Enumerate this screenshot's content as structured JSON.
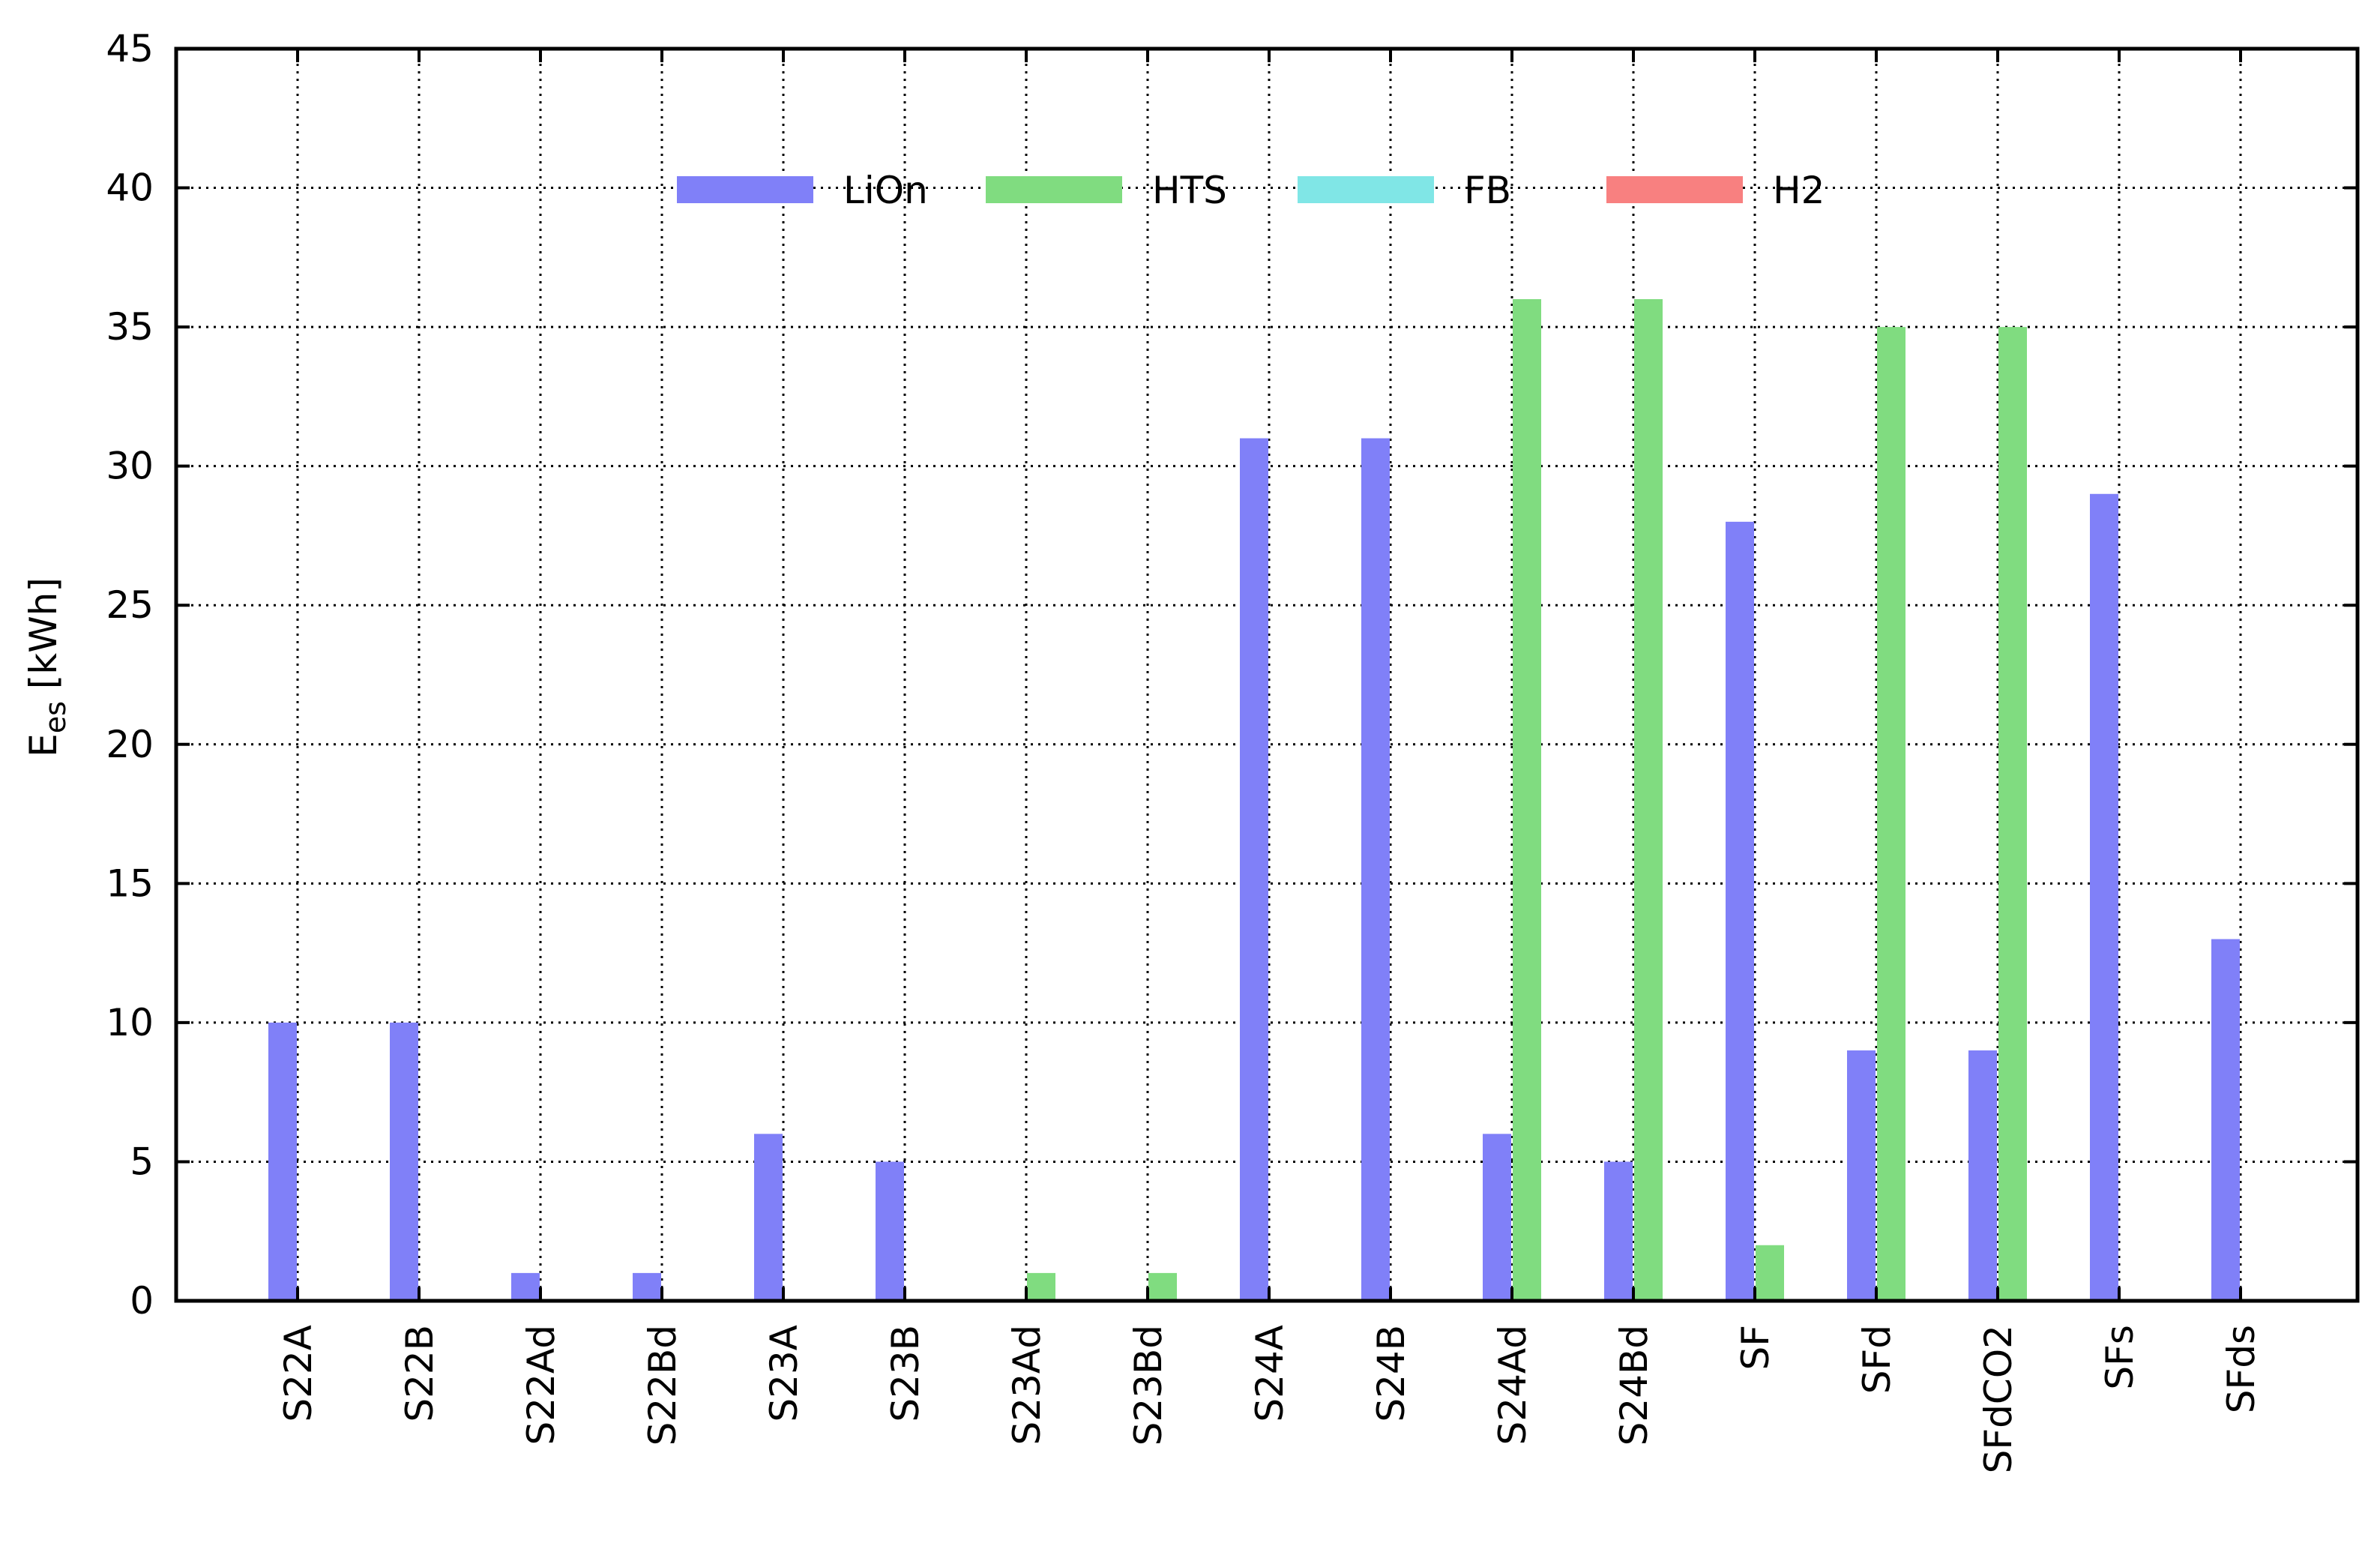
{
  "chart_data": {
    "type": "bar",
    "title": "",
    "xlabel": "",
    "ylabel": "E",
    "ylabel_subscript": "es",
    "ylabel_unit": " [kWh]",
    "ylim": [
      0,
      45
    ],
    "yticks": [
      0,
      5,
      10,
      15,
      20,
      25,
      30,
      35,
      40,
      45
    ],
    "grid": true,
    "legend_position": "top-center",
    "categories": [
      "S22A",
      "S22B",
      "S22Ad",
      "S22Bd",
      "S23A",
      "S23B",
      "S23Ad",
      "S23Bd",
      "S24A",
      "S24B",
      "S24Ad",
      "S24Bd",
      "SF",
      "SFd",
      "SFdCO2",
      "SFs",
      "SFds"
    ],
    "series": [
      {
        "name": "LiOn",
        "color": "#8080f8",
        "values": [
          10,
          10,
          1,
          1,
          6,
          5,
          0,
          0,
          31,
          31,
          6,
          5,
          28,
          9,
          9,
          29,
          13
        ]
      },
      {
        "name": "HTS",
        "color": "#80dc80",
        "values": [
          0,
          0,
          0,
          0,
          0,
          0,
          1,
          1,
          0,
          0,
          36,
          36,
          2,
          35,
          35,
          0,
          0
        ]
      },
      {
        "name": "FB",
        "color": "#80e6e6",
        "values": [
          0,
          0,
          0,
          0,
          0,
          0,
          0,
          0,
          0,
          0,
          0,
          0,
          0,
          0,
          0,
          0,
          0
        ]
      },
      {
        "name": "H2",
        "color": "#f88080",
        "values": [
          0,
          0,
          0,
          0,
          0,
          0,
          0,
          0,
          0,
          0,
          0,
          0,
          0,
          0,
          0,
          0,
          0
        ]
      }
    ]
  }
}
